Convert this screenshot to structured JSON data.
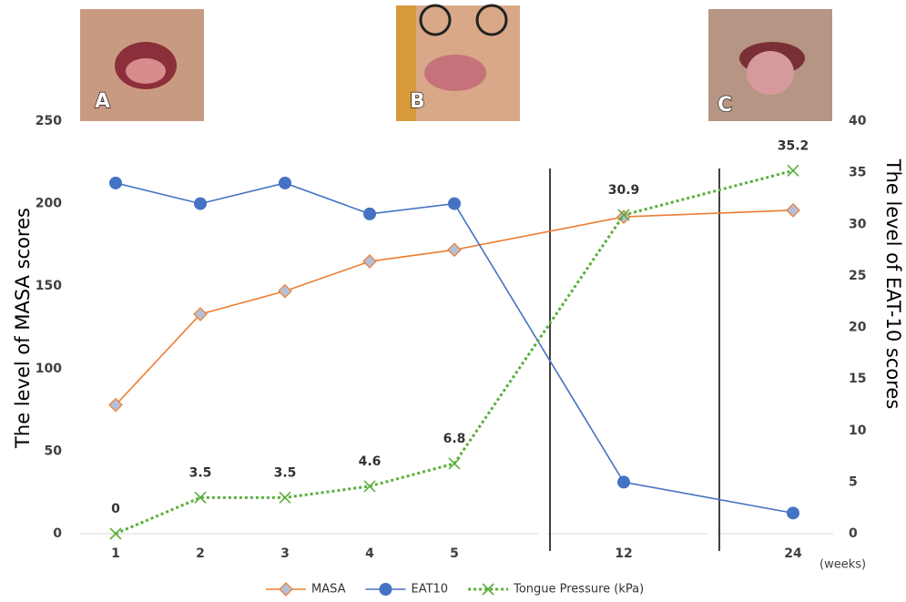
{
  "panels": [
    {
      "label": "A"
    },
    {
      "label": "B"
    },
    {
      "label": "C"
    }
  ],
  "chart_data": {
    "type": "line",
    "categories": [
      "1",
      "2",
      "3",
      "4",
      "5",
      "12",
      "24"
    ],
    "axis_breaks": [
      5,
      6
    ],
    "x_unit": "(weeks)",
    "ylabel": "The level of MASA scores",
    "y2label": "The level of EAT-10 scores",
    "ylim": [
      0,
      250
    ],
    "yticks": [
      0,
      50,
      100,
      150,
      200,
      250
    ],
    "y2lim": [
      0,
      40
    ],
    "y2ticks": [
      0,
      5,
      10,
      15,
      20,
      25,
      30,
      35,
      40
    ],
    "series": [
      {
        "name": "MASA",
        "color": "#ed7d31",
        "marker": "diamond",
        "values": [
          78,
          133,
          147,
          165,
          172,
          192,
          196
        ]
      },
      {
        "name": "EAT10",
        "color": "#4472c4",
        "marker": "circle",
        "axis": "y2",
        "values": [
          34,
          32,
          34,
          31,
          32,
          5,
          2
        ]
      },
      {
        "name": "Tongue Pressure (kPa)",
        "color": "#5aae3a",
        "marker": "x",
        "dashed": true,
        "axis": "y2",
        "data_labels": true,
        "values": [
          0,
          3.5,
          3.5,
          4.6,
          6.8,
          30.9,
          35.2
        ]
      }
    ]
  }
}
